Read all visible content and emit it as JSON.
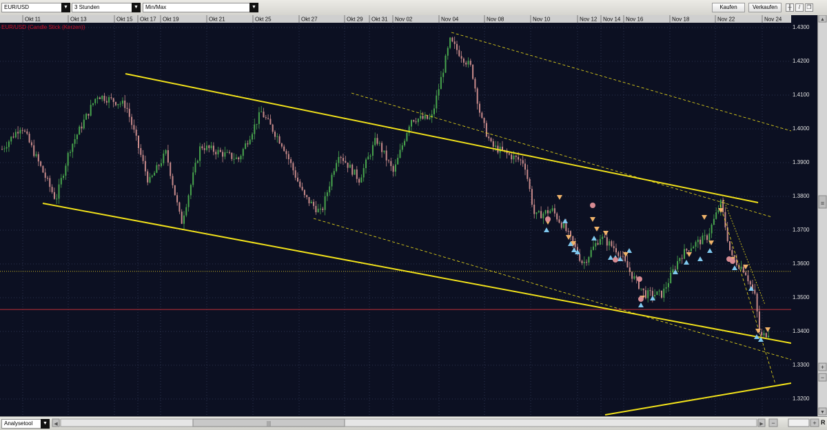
{
  "toolbar": {
    "instrument": "EUR/USD",
    "interval": "3 Stunden",
    "price_type": "Min/Max",
    "buy_label": "Kaufen",
    "sell_label": "Verkaufen"
  },
  "chart": {
    "series_label": "EUR/USD (Candle Stick (Kerzen))",
    "date_labels": [
      "Okt 11",
      "Okt 13",
      "Okt 15",
      "Okt 17",
      "Okt 19",
      "Okt 21",
      "Okt 25",
      "Okt 27",
      "Okt 29",
      "Okt 31",
      "Nov 02",
      "Nov 04",
      "Nov 08",
      "Nov 10",
      "Nov 12",
      "Nov 14",
      "Nov 16",
      "Nov 18",
      "Nov 22",
      "Nov 24"
    ],
    "price_labels": [
      "1.4300",
      "1.4200",
      "1.4100",
      "1.4000",
      "1.3900",
      "1.3800",
      "1.3700",
      "1.3600",
      "1.3500",
      "1.3400",
      "1.3300",
      "1.3200"
    ],
    "colors": {
      "background": "#0c1022",
      "bull": "#48a64d",
      "bear": "#c98b8b",
      "trendline": "#f2e21a",
      "reference_red": "#c0303a",
      "reference_yellow": "#c8b424",
      "grid": "#2d3550"
    }
  },
  "bottom": {
    "tool_label": "Analysetool",
    "right_letter": "R"
  }
}
